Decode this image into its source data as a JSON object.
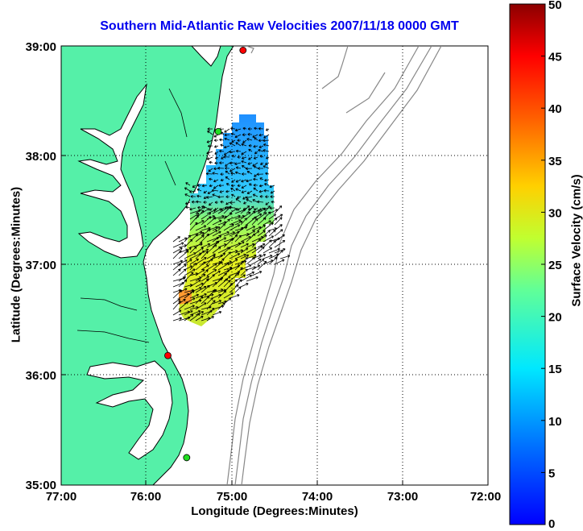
{
  "map": {
    "title": "Southern Mid-Atlantic Raw Velocities 2007/11/18 0000 GMT",
    "xlabel": "Longitude (Degrees:Minutes)",
    "ylabel": "Latitude (Degrees:Minutes)",
    "x_ticks": [
      "77:00",
      "76:00",
      "75:00",
      "74:00",
      "73:00",
      "72:00"
    ],
    "y_ticks": [
      "39:00",
      "38:00",
      "37:00",
      "36:00",
      "35:00"
    ],
    "land_color": "#55f0a8",
    "coast_color": "#000000",
    "bathymetry_color": "#888888"
  },
  "colorbar": {
    "label": "Surface Velocity (cm/s)",
    "ticks": [
      "50",
      "45",
      "40",
      "35",
      "30",
      "25",
      "20",
      "15",
      "10",
      "5",
      "0"
    ],
    "min": 0,
    "max": 50,
    "colormap": "jet"
  },
  "stations": [
    {
      "lat": 38.96,
      "lon": -74.87,
      "color": "#ff0000"
    },
    {
      "lat": 38.22,
      "lon": -75.16,
      "color": "#22dd22"
    },
    {
      "lat": 36.18,
      "lon": -75.75,
      "color": "#ff0000"
    },
    {
      "lat": 35.25,
      "lon": -75.53,
      "color": "#22dd22"
    }
  ]
}
